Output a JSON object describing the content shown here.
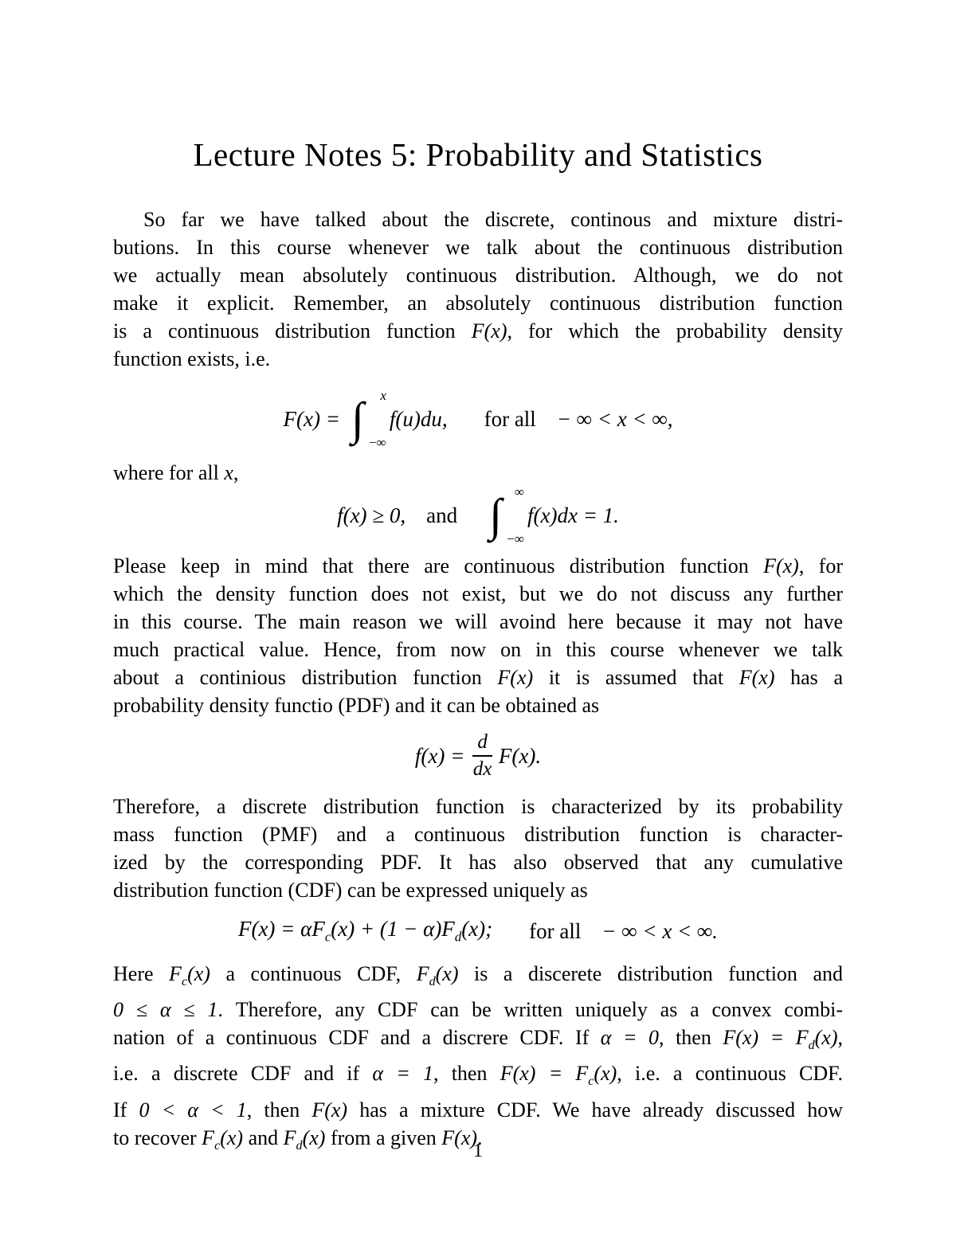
{
  "page": {
    "title": "Lecture Notes 5: Probability and Statistics",
    "page_number": "1"
  },
  "body": {
    "para1": {
      "lines": [
        "So far we have talked about the discrete, continous and mixture distri-",
        "butions. In this course whenever we talk about the continuous distribution",
        "we actually mean absolutely continuous distribution. Although, we do not",
        "make it explicit. Remember, an absolutely continuous distribution function",
        "is a continuous distribution function $F(x)$, for which the probability density",
        "function exists, i.e."
      ]
    },
    "where_line": "where for all $x$,",
    "para2": {
      "lines": [
        "Please keep in mind that there are continuous distribution function $F(x)$, for",
        "which the density function does not exist, but we do not discuss any further",
        "in this course. The main reason we will avoind here because it may not have",
        "much practical value. Hence, from now on in this course whenever we talk",
        "about a continious distribution function $F(x)$ it is assumed that $F(x)$ has a",
        "probability density functio (PDF) and it can be obtained as"
      ]
    },
    "para3": {
      "lines": [
        "Therefore, a discrete distribution function is characterized by its probability",
        "mass function (PMF) and a continuous distribution function is character-",
        "ized by the corresponding PDF. It has also observed that any cumulative",
        "distribution function (CDF) can be expressed uniquely as"
      ]
    },
    "para4": {
      "lines": [
        "Here $F_{c}(x)$ a continuous CDF, $F_{d}(x)$ is a discerete distribution function and",
        "$0 ≤ α ≤ 1$. Therefore, any CDF can be written uniquely as a convex combi-",
        "nation of a continuous CDF and a discrere CDF. If $α = 0$, then $F(x) = F_{d}(x)$,",
        "i.e. a discrete CDF and if $α = 1$, then $F(x) = F_{c}(x)$, i.e. a continuous CDF.",
        "If $0 < α < 1$, then $F(x)$ has a mixture CDF. We have already discussed how",
        "to recover $F_{c}(x)$ and $F_{d}(x)$ from a given $F(x)$."
      ]
    }
  },
  "equations": {
    "eq1": {
      "lhs": "F(x) =",
      "integral_sign": "∫",
      "upper_limit": "x",
      "lower_limit": "−∞",
      "integrand": "f(u)du,",
      "quantifier": "for all",
      "range": "− ∞ < x < ∞,"
    },
    "eq2": {
      "condition": "f(x) ≥ 0,",
      "connector": "and",
      "integral_sign": "∫",
      "upper_limit": "∞",
      "lower_limit": "−∞",
      "integrand": "f(x)dx = 1."
    },
    "eq3": {
      "lhs": "f(x) =",
      "numerator": "d",
      "denominator": "dx",
      "rhs": "F(x)."
    },
    "eq4": {
      "formula": "F(x) = αF_{c}(x) + (1 − α)F_{d}(x);",
      "quantifier": "for all",
      "range": "− ∞ < x < ∞."
    }
  }
}
